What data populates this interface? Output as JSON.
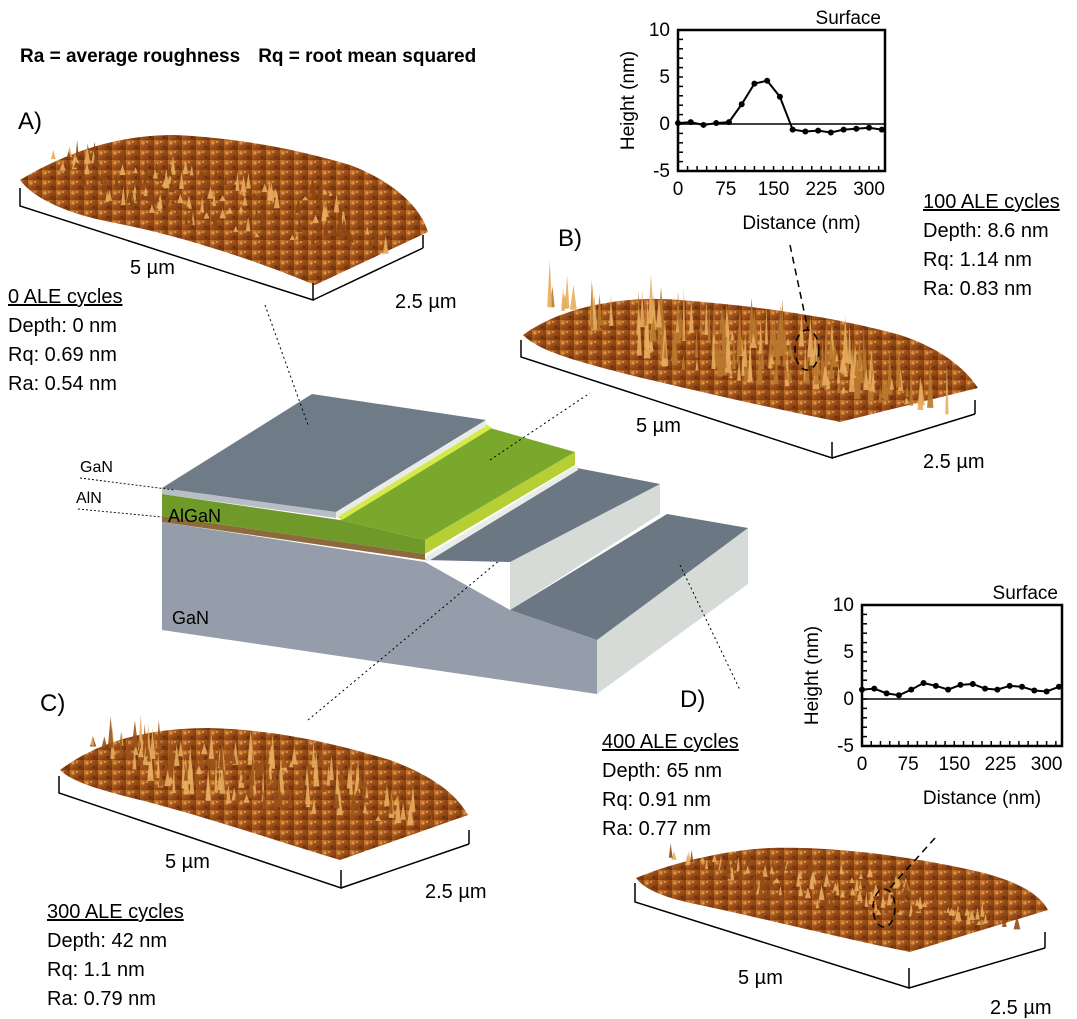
{
  "legend": {
    "ra": "Ra = average roughness",
    "rq": "Rq = root mean squared"
  },
  "panels": {
    "A": {
      "letter": "A)",
      "x_length": "5 µm",
      "y_length": "2.5 µm",
      "title": "0 ALE cycles",
      "depth": "Depth: 0 nm",
      "rq": "Rq: 0.69 nm",
      "ra": "Ra: 0.54 nm"
    },
    "B": {
      "letter": "B)",
      "x_length": "5 µm",
      "y_length": "2.5 µm",
      "title": "100 ALE cycles",
      "depth": "Depth: 8.6 nm",
      "rq": "Rq: 1.14 nm",
      "ra": "Ra: 0.83 nm"
    },
    "C": {
      "letter": "C)",
      "x_length": "5 µm",
      "y_length": "2.5 µm",
      "title": "300 ALE cycles",
      "depth": "Depth: 42 nm",
      "rq": "Rq: 1.1 nm",
      "ra": "Ra: 0.79 nm"
    },
    "D": {
      "letter": "D)",
      "x_length": "5 µm",
      "y_length": "2.5 µm",
      "title": "400 ALE cycles",
      "depth": "Depth: 65 nm",
      "rq": "Rq: 0.91 nm",
      "ra": "Ra: 0.77 nm"
    }
  },
  "device_layers": {
    "gan_cap": "GaN",
    "aln": "AlN",
    "algan": "AlGaN",
    "gan_substrate": "GaN"
  },
  "colors": {
    "afm_dark": "#5a2a0c",
    "afm_mid": "#a8561c",
    "afm_light": "#e3a14a",
    "gan_top": "#6e7a84",
    "gan_side": "#9aa3ad",
    "algan_top": "#6f9a2a",
    "algan_bright": "#c6df3a",
    "aln": "#8a6a3a"
  },
  "chart_data": [
    {
      "type": "line",
      "title": "Surface",
      "xlabel": "Distance (nm)",
      "ylabel": "Height (nm)",
      "xlim": [
        0,
        325
      ],
      "ylim": [
        -5,
        10
      ],
      "xticks": [
        "0",
        "75",
        "150",
        "225",
        "300"
      ],
      "yticks": [
        "10",
        "5",
        "0",
        "-5"
      ],
      "series": [
        {
          "x": [
            0,
            20,
            40,
            60,
            80,
            100,
            120,
            140,
            160,
            180,
            200,
            220,
            240,
            260,
            280,
            300,
            320
          ],
          "y": [
            0.1,
            0.2,
            -0.1,
            0.1,
            0.2,
            2.1,
            4.3,
            4.6,
            2.9,
            -0.6,
            -0.8,
            -0.7,
            -0.9,
            -0.6,
            -0.5,
            -0.4,
            -0.6
          ]
        }
      ]
    },
    {
      "type": "line",
      "title": "Surface",
      "xlabel": "Distance (nm)",
      "ylabel": "Height (nm)",
      "xlim": [
        0,
        325
      ],
      "ylim": [
        -5,
        10
      ],
      "xticks": [
        "0",
        "75",
        "150",
        "225",
        "300"
      ],
      "yticks": [
        "10",
        "5",
        "0",
        "-5"
      ],
      "series": [
        {
          "x": [
            0,
            20,
            40,
            60,
            80,
            100,
            120,
            140,
            160,
            180,
            200,
            220,
            240,
            260,
            280,
            300,
            320
          ],
          "y": [
            1.0,
            1.1,
            0.6,
            0.4,
            1.0,
            1.7,
            1.4,
            1.0,
            1.5,
            1.6,
            1.1,
            1.0,
            1.4,
            1.3,
            0.9,
            0.8,
            1.3
          ]
        }
      ]
    }
  ]
}
